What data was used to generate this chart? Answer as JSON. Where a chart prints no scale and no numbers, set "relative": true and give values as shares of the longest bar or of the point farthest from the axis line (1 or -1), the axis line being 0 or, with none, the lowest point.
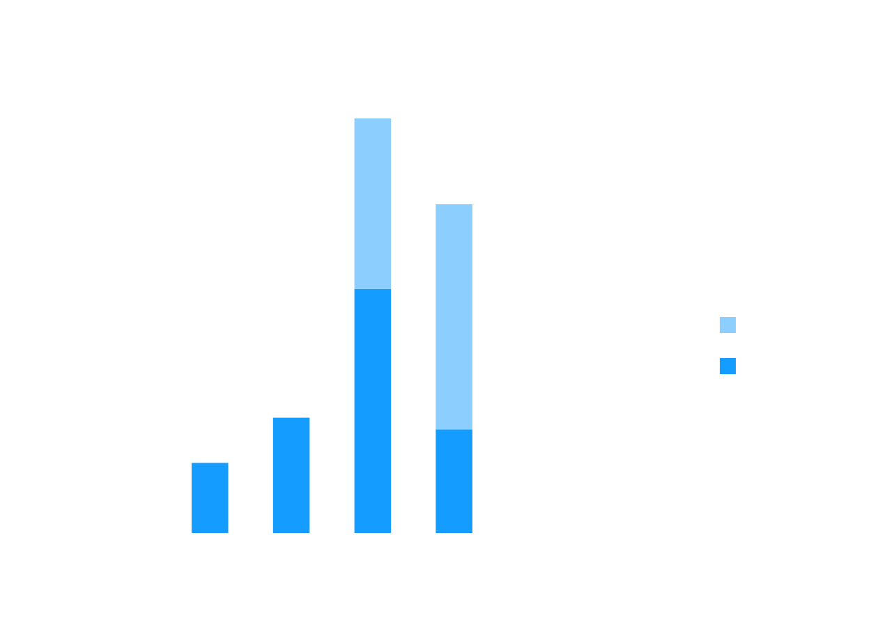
{
  "chart_data": {
    "type": "bar",
    "stacked": true,
    "relative": true,
    "categories": [
      null,
      null,
      null,
      null
    ],
    "series": [
      {
        "color": "#159cff",
        "values": [
          0.169,
          0.278,
          0.589,
          0.25
        ]
      },
      {
        "color": "#8ccfff",
        "values": [
          0,
          0,
          0.411,
          0.543
        ]
      }
    ]
  }
}
